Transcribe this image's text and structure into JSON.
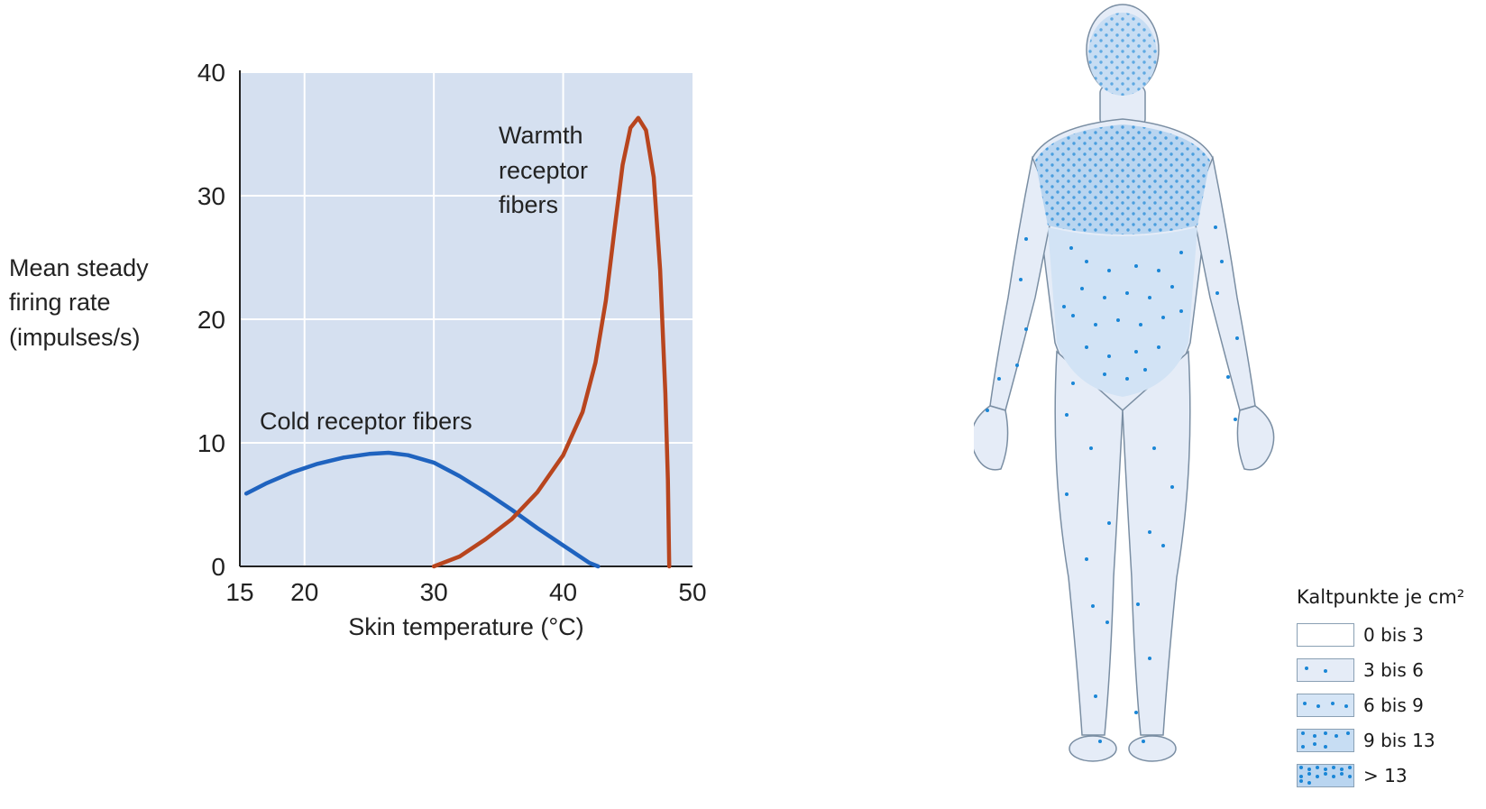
{
  "chart_data": {
    "type": "line",
    "ylabel": [
      "Mean steady",
      "firing rate",
      "(impulses/s)"
    ],
    "xlabel": "Skin temperature (°C)",
    "xlim": [
      15,
      50
    ],
    "ylim": [
      0,
      40
    ],
    "x_ticks": [
      15,
      20,
      30,
      40,
      50
    ],
    "y_ticks": [
      0,
      10,
      20,
      30,
      40
    ],
    "grid": true,
    "colors": {
      "plot_bg": "#d5e0f0",
      "grid": "#ffffff",
      "cold": "#1f63bf",
      "warm": "#b8451e"
    },
    "series": [
      {
        "name": "Cold receptor fibers",
        "color": "#1f63bf",
        "points": [
          [
            15.5,
            5.9
          ],
          [
            17,
            6.7
          ],
          [
            19,
            7.6
          ],
          [
            21,
            8.3
          ],
          [
            23,
            8.8
          ],
          [
            25,
            9.1
          ],
          [
            26.5,
            9.2
          ],
          [
            28,
            9.0
          ],
          [
            30,
            8.4
          ],
          [
            32,
            7.3
          ],
          [
            34,
            6.0
          ],
          [
            36,
            4.6
          ],
          [
            38,
            3.1
          ],
          [
            40,
            1.7
          ],
          [
            42,
            0.3
          ],
          [
            42.7,
            0
          ]
        ]
      },
      {
        "name": "Warmth receptor fibers",
        "label_lines": [
          "Warmth",
          "receptor",
          "fibers"
        ],
        "color": "#b8451e",
        "points": [
          [
            30,
            0
          ],
          [
            32,
            0.8
          ],
          [
            34,
            2.2
          ],
          [
            36,
            3.8
          ],
          [
            38,
            6.0
          ],
          [
            40,
            9.0
          ],
          [
            41.5,
            12.5
          ],
          [
            42.5,
            16.5
          ],
          [
            43.3,
            21.5
          ],
          [
            44,
            27.5
          ],
          [
            44.6,
            32.5
          ],
          [
            45.2,
            35.5
          ],
          [
            45.8,
            36.3
          ],
          [
            46.4,
            35.3
          ],
          [
            47,
            31.5
          ],
          [
            47.5,
            24
          ],
          [
            47.9,
            14
          ],
          [
            48.1,
            7
          ],
          [
            48.2,
            0
          ]
        ]
      }
    ]
  },
  "body_map": {
    "legend_title": "Kaltpunkte je cm²",
    "colors": {
      "skin": "#e5ecf7",
      "dense": "#b9d5f0",
      "dot": "#1a86d6",
      "outline": "#7a8ea3"
    },
    "legend": [
      {
        "label": "0 bis 3",
        "fill": "#ffffff",
        "dots": 0
      },
      {
        "label": "3 bis 6",
        "fill": "#e5ecf7",
        "dots": 2
      },
      {
        "label": "6 bis 9",
        "fill": "#d5e5f6",
        "dots": 4
      },
      {
        "label": "9 bis 13",
        "fill": "#c7ddf3",
        "dots": 8
      },
      {
        "label": "> 13",
        "fill": "#b9d5f0",
        "dots": 16
      }
    ]
  }
}
